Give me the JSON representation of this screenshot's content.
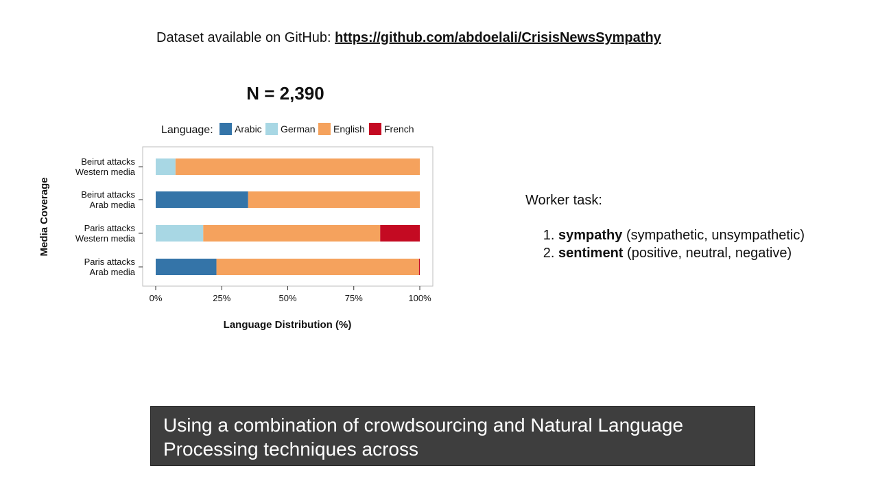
{
  "header": {
    "dataset_prefix": "Dataset available on GitHub:",
    "dataset_link": "https://github.com/abdoelali/CrisisNewsSympathy"
  },
  "chart_data": {
    "type": "bar",
    "orientation": "horizontal",
    "stacked": true,
    "title": "N = 2,390",
    "xlabel": "Language Distribution (%)",
    "ylabel": "Media Coverage",
    "legend_title": "Language:",
    "legend_position": "top",
    "xlim": [
      0,
      100
    ],
    "xticks": [
      "0%",
      "25%",
      "50%",
      "75%",
      "100%"
    ],
    "grid": false,
    "categories": [
      [
        "Beirut attacks",
        "Western media"
      ],
      [
        "Beirut attacks",
        "Arab media"
      ],
      [
        "Paris attacks",
        "Western media"
      ],
      [
        "Paris attacks",
        "Arab media"
      ]
    ],
    "series": [
      {
        "name": "Arabic",
        "color": "#3474a8",
        "values": [
          0,
          35,
          0,
          23
        ]
      },
      {
        "name": "German",
        "color": "#a8d7e4",
        "values": [
          7.5,
          0,
          18,
          0
        ]
      },
      {
        "name": "English",
        "color": "#f5a25d",
        "values": [
          92.5,
          65,
          67,
          76.7
        ]
      },
      {
        "name": "French",
        "color": "#c40a22",
        "values": [
          0,
          0,
          15,
          0.3
        ]
      }
    ]
  },
  "worker_task": {
    "title": "Worker task:",
    "items": [
      {
        "term": "sympathy",
        "detail": "(sympathetic, unsympathetic)"
      },
      {
        "term": "sentiment",
        "detail": "(positive, neutral, negative)"
      }
    ]
  },
  "caption": {
    "text": "Using a combination of crowdsourcing and Natural Language Processing techniques across"
  }
}
